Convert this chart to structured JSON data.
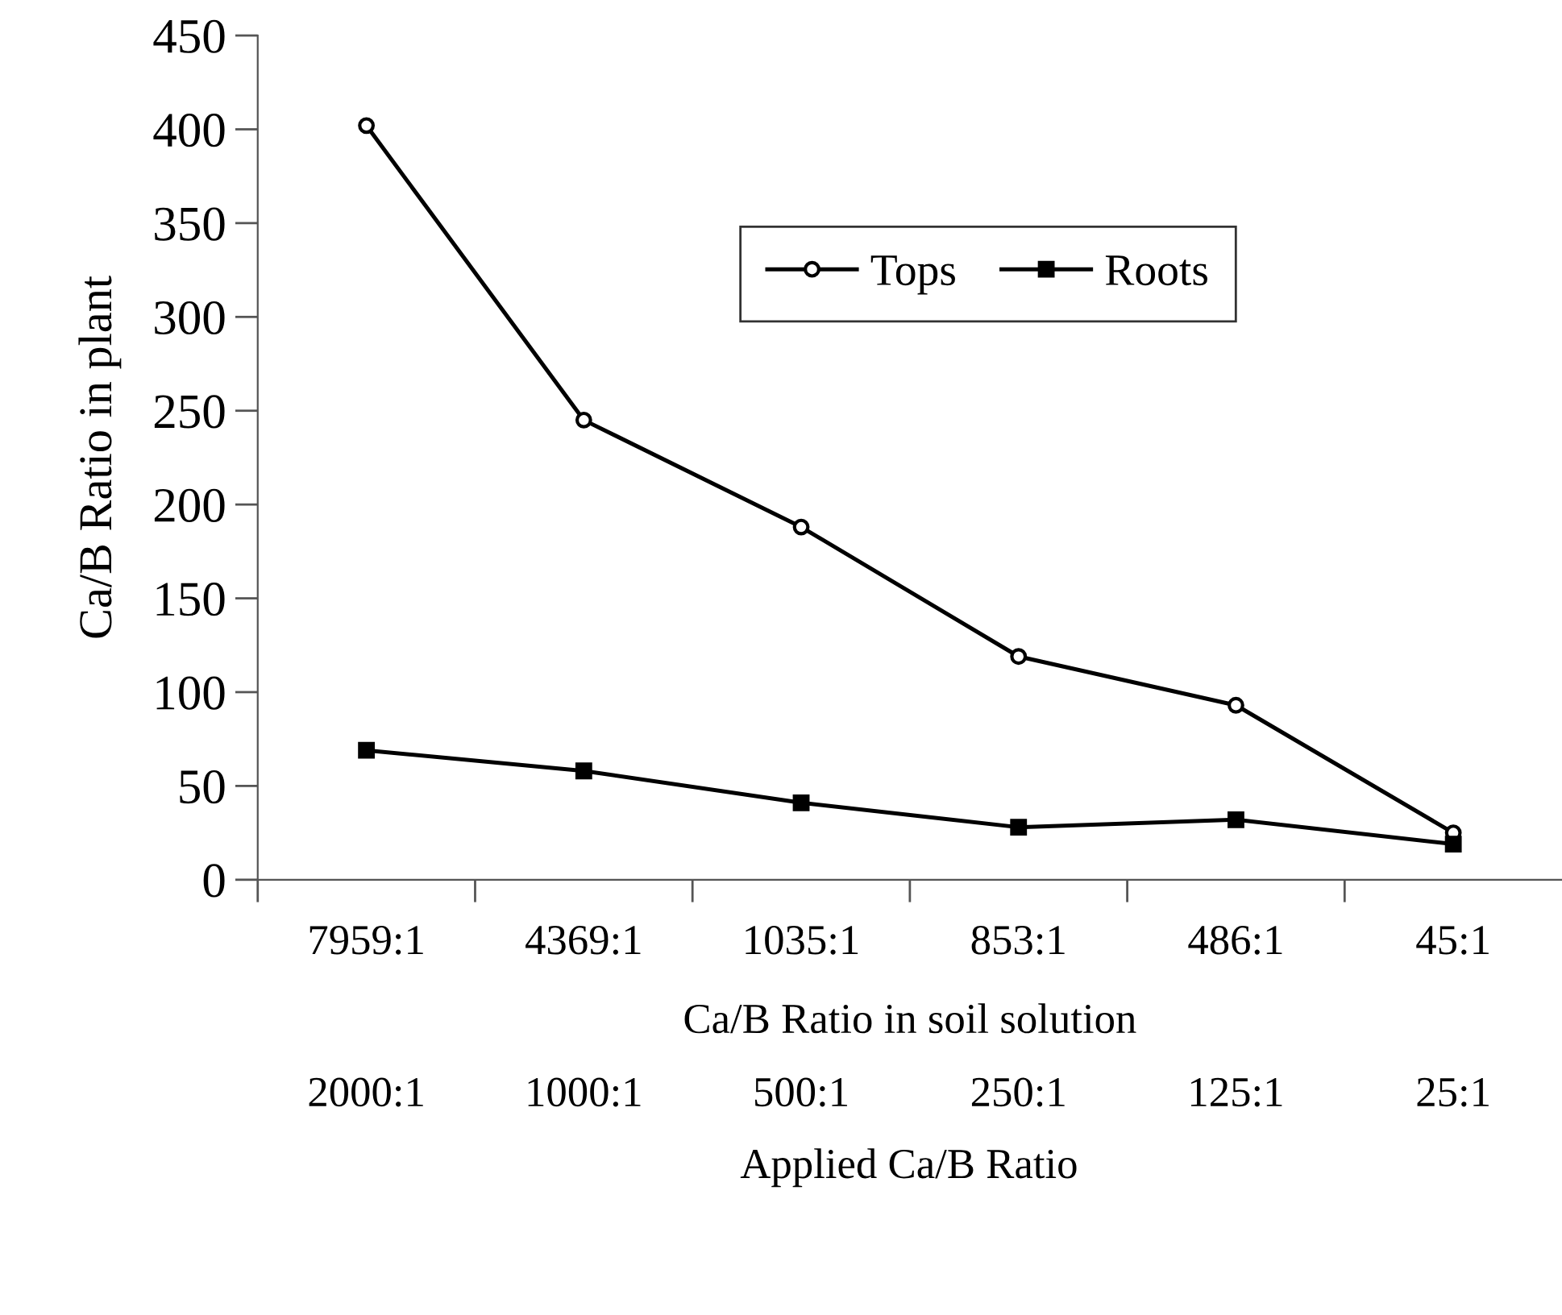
{
  "chart_data": {
    "type": "line",
    "categories": [
      "7959:1",
      "4369:1",
      "1035:1",
      "853:1",
      "486:1",
      "45:1"
    ],
    "xlabel": "Ca/B Ratio in soil solution",
    "ylabel": "Ca/B Ratio in plant",
    "series": [
      {
        "name": "Tops",
        "color": "#000000",
        "marker": "circle",
        "values": [
          402,
          245,
          188,
          119,
          93,
          25
        ]
      },
      {
        "name": "Roots",
        "color": "#000000",
        "marker": "square",
        "values": [
          69,
          58,
          41,
          28,
          32,
          19
        ]
      }
    ],
    "ylim": [
      0,
      450
    ],
    "yticks": [
      0,
      50,
      100,
      150,
      200,
      250,
      300,
      350,
      400,
      450
    ],
    "grid": false,
    "legend": "top",
    "line_style": "solid",
    "annotations": [
      "2000:1",
      "1000:1",
      "500:1",
      "250:1",
      "125:1",
      "25:1",
      "Applied Ca/B Ratio"
    ]
  }
}
